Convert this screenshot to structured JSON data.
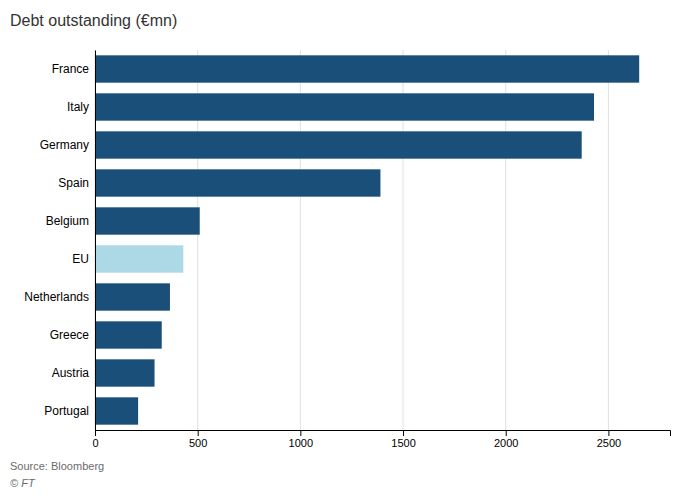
{
  "chart_data": {
    "type": "bar",
    "orientation": "horizontal",
    "title": "Debt outstanding (€mn)",
    "categories": [
      "France",
      "Italy",
      "Germany",
      "Spain",
      "Belgium",
      "EU",
      "Netherlands",
      "Greece",
      "Austria",
      "Portugal"
    ],
    "values": [
      2650,
      2430,
      2370,
      1390,
      510,
      430,
      365,
      325,
      290,
      210
    ],
    "colors": [
      "#1a4f7a",
      "#1a4f7a",
      "#1a4f7a",
      "#1a4f7a",
      "#1a4f7a",
      "#add8e6",
      "#1a4f7a",
      "#1a4f7a",
      "#1a4f7a",
      "#1a4f7a"
    ],
    "xlim": [
      0,
      2800
    ],
    "xticks": [
      0,
      500,
      1000,
      1500,
      2000,
      2500
    ],
    "grid": true,
    "annotations": [
      "Source: Bloomberg",
      "© FT"
    ]
  }
}
